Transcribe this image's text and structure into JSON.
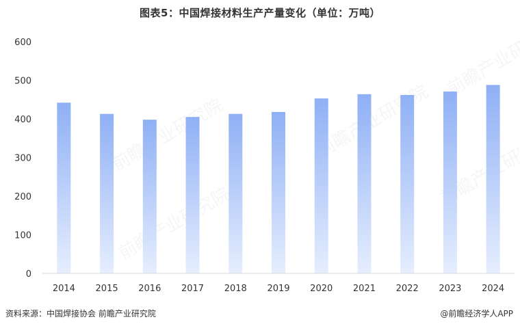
{
  "title": "图表5：中国焊接材料生产产量变化（单位：万吨）",
  "source": "资料来源：中国焊接协会  前瞻产业研究院",
  "credit": "@前瞻经济学人APP",
  "watermark": "前瞻产业研究院",
  "colors": {
    "bar_top": "#8fb0f5",
    "bar_bottom": "#e6eefe",
    "axis": "#d9d9d9"
  },
  "chart_data": {
    "type": "bar",
    "title": "图表5：中国焊接材料生产产量变化（单位：万吨）",
    "categories": [
      "2014",
      "2015",
      "2016",
      "2017",
      "2018",
      "2019",
      "2020",
      "2021",
      "2022",
      "2023",
      "2024"
    ],
    "values": [
      442,
      413,
      398,
      405,
      413,
      418,
      453,
      464,
      462,
      471,
      488
    ],
    "ylim": [
      0,
      600
    ],
    "yticks": [
      0,
      100,
      200,
      300,
      400,
      500,
      600
    ],
    "xlabel": "",
    "ylabel": "",
    "grid": false,
    "legend": "none"
  }
}
